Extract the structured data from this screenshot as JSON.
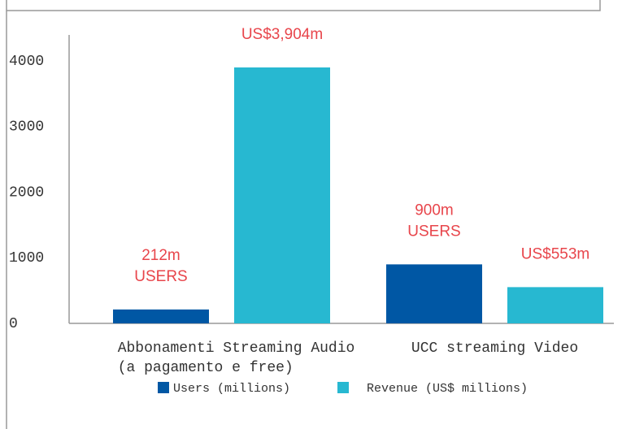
{
  "chart_data": {
    "type": "bar",
    "categories": [
      "Abbonamenti Streaming Audio\n(a pagamento e free)",
      "UCC streaming Video"
    ],
    "series": [
      {
        "name": "Users (millions)",
        "color": "#0057a4",
        "values": [
          212,
          900
        ],
        "value_labels": [
          "212m\nUSERS",
          "900m\nUSERS"
        ]
      },
      {
        "name": "Revenue (US$ millions)",
        "color": "#27b8d1",
        "values": [
          3904,
          553
        ],
        "value_labels": [
          "US$3,904m",
          "US$553m"
        ]
      }
    ],
    "ylim": [
      0,
      4400
    ],
    "yticks": [
      0,
      1000,
      2000,
      3000,
      4000
    ],
    "grid": false,
    "legend": "bottom"
  }
}
